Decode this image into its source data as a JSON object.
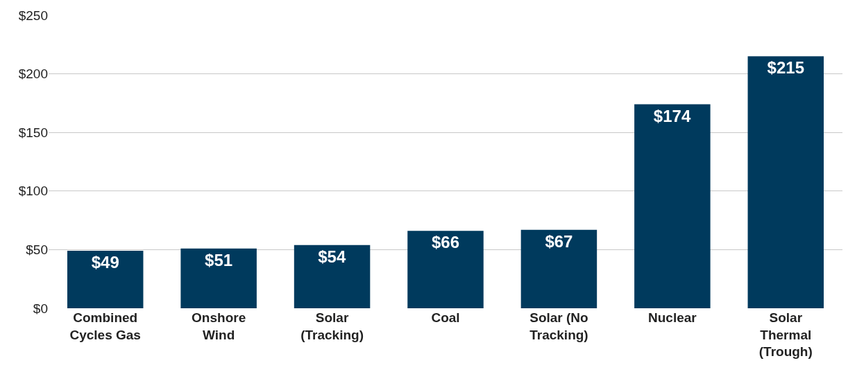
{
  "chart_data": {
    "type": "bar",
    "categories": [
      "Combined Cycles Gas",
      "Onshore Wind",
      "Solar (Tracking)",
      "Coal",
      "Solar (No Tracking)",
      "Nuclear",
      "Solar Thermal (Trough)"
    ],
    "values": [
      49,
      51,
      54,
      66,
      67,
      174,
      215
    ],
    "value_labels": [
      "$49",
      "$51",
      "$54",
      "$66",
      "$67",
      "$174",
      "$215"
    ],
    "color": "#003a5d",
    "ylim": [
      0,
      250
    ],
    "yticks": [
      {
        "value": 0,
        "label": "$0"
      },
      {
        "value": 50,
        "label": "$50"
      },
      {
        "value": 100,
        "label": "$100"
      },
      {
        "value": 150,
        "label": "$150"
      },
      {
        "value": 200,
        "label": "$200"
      },
      {
        "value": 250,
        "label": "$250"
      }
    ],
    "grid": "y"
  }
}
